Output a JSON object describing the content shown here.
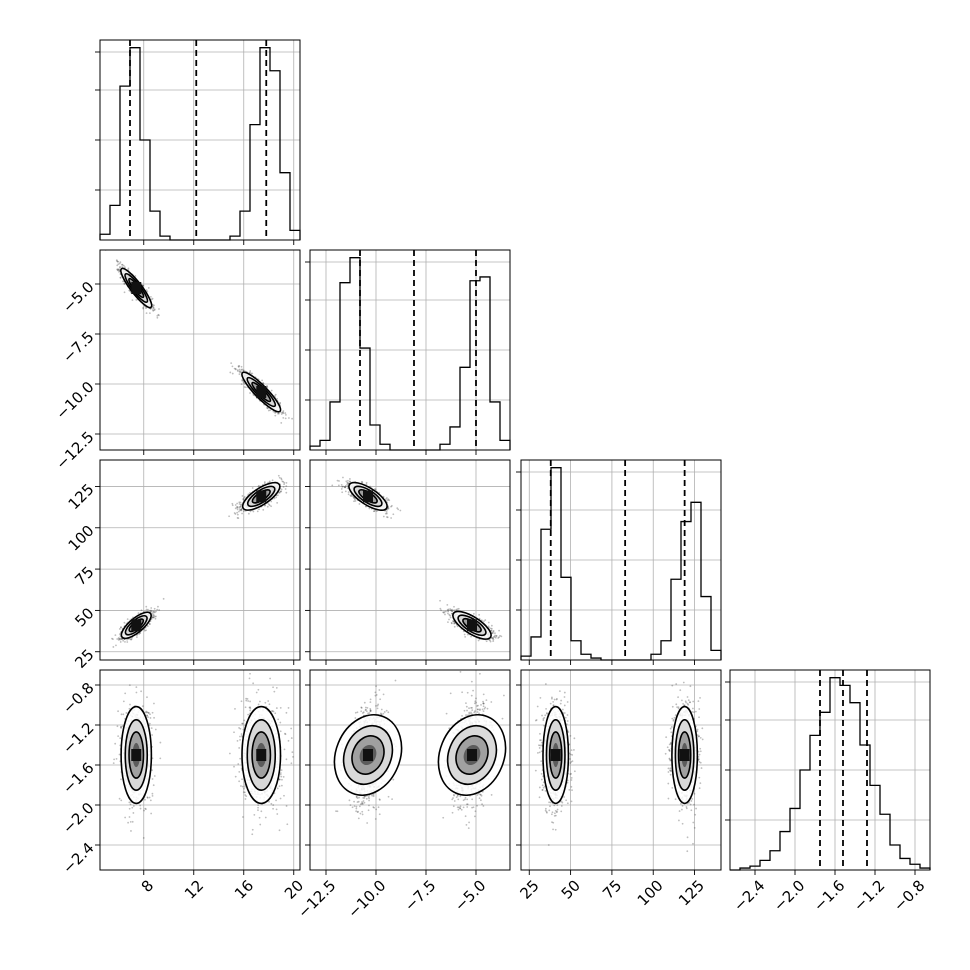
{
  "chart_data": {
    "type": "corner",
    "grid": true,
    "parameters": [
      {
        "range": [
          4.5,
          20.5
        ],
        "ticks": [
          8,
          12,
          16,
          20
        ],
        "tick_labels": [
          "8",
          "12",
          "16",
          "20"
        ],
        "quantiles": [
          6.9,
          12.2,
          17.8
        ],
        "modes": [
          {
            "mean": 7.4,
            "sd": 0.55,
            "weight": 0.5
          },
          {
            "mean": 17.4,
            "sd": 0.7,
            "weight": 0.5
          }
        ]
      },
      {
        "range": [
          -13.3,
          -3.3
        ],
        "ticks": [
          -12.5,
          -10.0,
          -7.5,
          -5.0
        ],
        "tick_labels": [
          "−12.5",
          "−10.0",
          "−7.5",
          "−5.0"
        ],
        "quantiles": [
          -10.8,
          -8.1,
          -5.0
        ],
        "modes": [
          {
            "mean": -10.4,
            "sd": 0.45,
            "weight": 0.5
          },
          {
            "mean": -5.2,
            "sd": 0.45,
            "weight": 0.5
          }
        ]
      },
      {
        "range": [
          20,
          141
        ],
        "ticks": [
          25,
          50,
          75,
          100,
          125
        ],
        "tick_labels": [
          "25",
          "50",
          "75",
          "100",
          "125"
        ],
        "quantiles": [
          38,
          83,
          119
        ],
        "modes": [
          {
            "mean": 41,
            "sd": 3.5,
            "weight": 0.5
          },
          {
            "mean": 119,
            "sd": 3.5,
            "weight": 0.5
          }
        ]
      },
      {
        "range": [
          -2.65,
          -0.65
        ],
        "ticks": [
          -2.4,
          -2.0,
          -1.6,
          -1.2,
          -0.8
        ],
        "tick_labels": [
          "−2.4",
          "−2.0",
          "−1.6",
          "−1.2",
          "−0.8"
        ],
        "quantiles": [
          -1.75,
          -1.52,
          -1.28
        ],
        "modes": [
          {
            "mean": -1.5,
            "sd": 0.22,
            "weight": 1.0
          }
        ]
      }
    ],
    "histograms": [
      {
        "param": 0,
        "bin_edges": [
          4.5,
          5.3,
          6.1,
          6.9,
          7.7,
          8.5,
          9.3,
          10.1,
          10.9,
          11.7,
          12.5,
          13.3,
          14.1,
          14.9,
          15.7,
          16.5,
          17.3,
          18.1,
          18.9,
          19.7,
          20.5
        ],
        "counts": [
          3,
          18,
          80,
          100,
          52,
          15,
          2,
          0,
          0,
          0,
          0,
          0,
          0,
          2,
          15,
          60,
          100,
          88,
          35,
          5
        ]
      },
      {
        "param": 1,
        "bin_edges": [
          -13.3,
          -12.8,
          -12.3,
          -11.8,
          -11.3,
          -10.8,
          -10.3,
          -9.8,
          -9.3,
          -8.8,
          -8.3,
          -7.8,
          -7.3,
          -6.8,
          -6.3,
          -5.8,
          -5.3,
          -4.8,
          -4.3,
          -3.8,
          -3.3
        ],
        "counts": [
          2,
          5,
          25,
          87,
          100,
          53,
          13,
          3,
          0,
          0,
          0,
          0,
          0,
          3,
          12,
          43,
          88,
          90,
          25,
          5
        ]
      },
      {
        "param": 2,
        "bin_edges": [
          20,
          26.05,
          32.1,
          38.15,
          44.2,
          50.25,
          56.3,
          62.35,
          68.4,
          74.45,
          80.5,
          86.55,
          92.6,
          98.65,
          104.7,
          110.75,
          116.8,
          122.85,
          128.9,
          134.95,
          141
        ],
        "counts": [
          2,
          12,
          68,
          100,
          43,
          10,
          3,
          1,
          0,
          0,
          0,
          0,
          0,
          3,
          10,
          42,
          72,
          82,
          33,
          5
        ]
      },
      {
        "param": 3,
        "bin_edges": [
          -2.65,
          -2.55,
          -2.45,
          -2.35,
          -2.25,
          -2.15,
          -2.05,
          -1.95,
          -1.85,
          -1.75,
          -1.65,
          -1.55,
          -1.45,
          -1.35,
          -1.25,
          -1.15,
          -1.05,
          -0.95,
          -0.85,
          -0.75,
          -0.65
        ],
        "counts": [
          0,
          1,
          2,
          5,
          10,
          20,
          32,
          52,
          70,
          82,
          100,
          96,
          87,
          65,
          44,
          29,
          13,
          6,
          3,
          1
        ]
      }
    ]
  }
}
